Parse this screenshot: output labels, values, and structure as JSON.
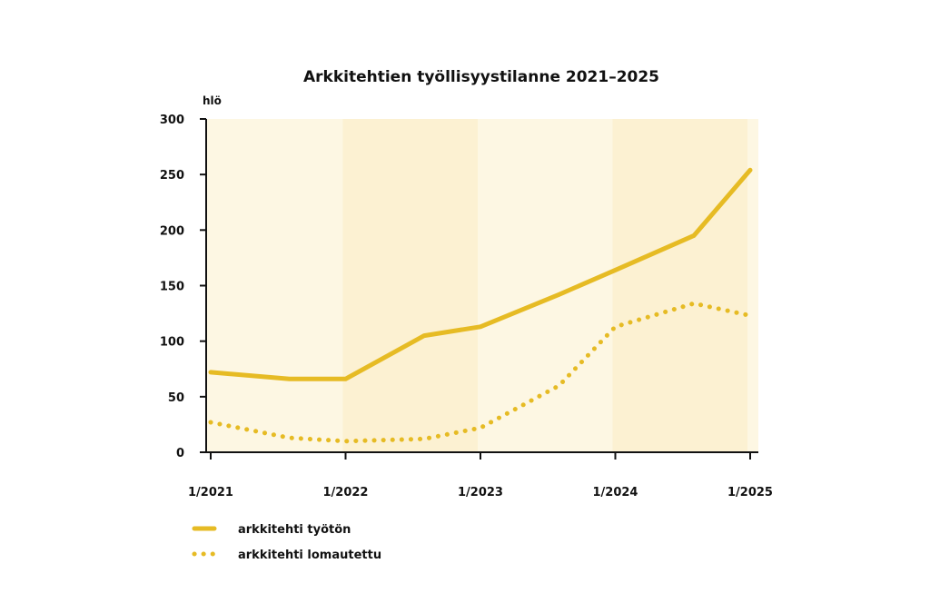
{
  "chart_data": {
    "type": "line",
    "title": "Arkkitehtien työllisyystilanne 2021–2025",
    "ylabel": "hlö",
    "ylim": [
      0,
      300
    ],
    "yticks": [
      "0",
      "50",
      "100",
      "150",
      "200",
      "250",
      "300"
    ],
    "xticks": [
      "1/2021",
      "1/2022",
      "1/2023",
      "1/2024",
      "1/2025"
    ],
    "grid": false,
    "legend_position": "bottom-left",
    "series": [
      {
        "name": "arkkitehti työtön",
        "style": "solid",
        "color": "#e6bb24",
        "points": [
          [
            "1/2021",
            72
          ],
          [
            "8/2021",
            66
          ],
          [
            "1/2022",
            66
          ],
          [
            "8/2022",
            105
          ],
          [
            "1/2023",
            113
          ],
          [
            "8/2023",
            142
          ],
          [
            "1/2024",
            164
          ],
          [
            "8/2024",
            195
          ],
          [
            "1/2025",
            254
          ]
        ]
      },
      {
        "name": "arkkitehti lomautettu",
        "style": "dotted",
        "color": "#e6bb24",
        "points": [
          [
            "1/2021",
            27
          ],
          [
            "8/2021",
            13
          ],
          [
            "1/2022",
            10
          ],
          [
            "8/2022",
            12
          ],
          [
            "1/2023",
            22
          ],
          [
            "8/2023",
            60
          ],
          [
            "1/2024",
            113
          ],
          [
            "8/2024",
            134
          ],
          [
            "1/2025",
            123
          ]
        ]
      }
    ],
    "background_colors": [
      "#fdf7e3",
      "#fcf1d2"
    ]
  }
}
